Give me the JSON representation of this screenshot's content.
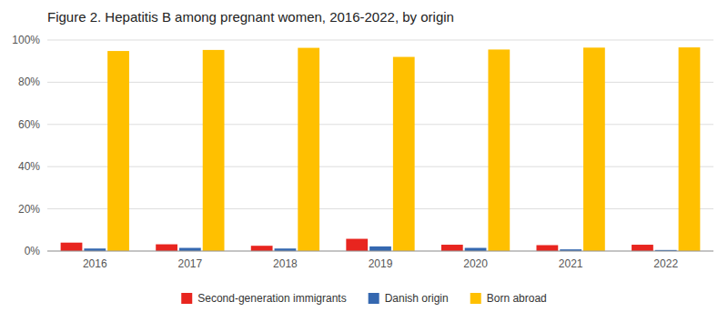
{
  "chart_data": {
    "type": "bar",
    "title": "Figure 2. Hepatitis B among pregnant women, 2016-2022, by origin",
    "categories": [
      "2016",
      "2017",
      "2018",
      "2019",
      "2020",
      "2021",
      "2022"
    ],
    "series": [
      {
        "name": "Second-generation immigrants",
        "color": "#E8251F",
        "values": [
          4.0,
          3.2,
          2.5,
          5.8,
          3.0,
          2.8,
          3.0
        ]
      },
      {
        "name": "Danish origin",
        "color": "#3568B0",
        "values": [
          1.2,
          1.5,
          1.2,
          2.2,
          1.5,
          0.8,
          0.5
        ]
      },
      {
        "name": "Born abroad",
        "color": "#FFC000",
        "values": [
          94.8,
          95.3,
          96.3,
          92.0,
          95.5,
          96.4,
          96.5
        ]
      }
    ],
    "ylim": [
      0,
      100
    ],
    "yticks": [
      {
        "value": 0,
        "label": "0%"
      },
      {
        "value": 20,
        "label": "20%"
      },
      {
        "value": 40,
        "label": "40%"
      },
      {
        "value": 60,
        "label": "60%"
      },
      {
        "value": 80,
        "label": "80%"
      },
      {
        "value": 100,
        "label": "100%"
      }
    ],
    "grid": true,
    "legend": "bottom"
  }
}
